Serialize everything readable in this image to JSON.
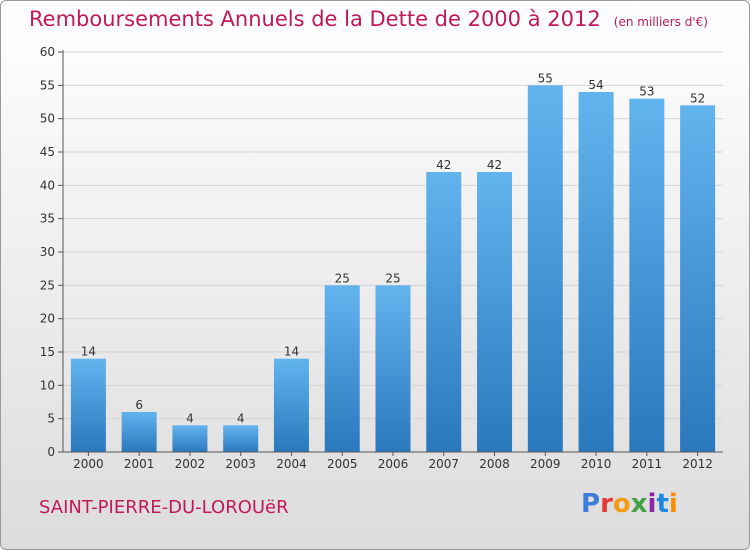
{
  "header": {
    "title": "Remboursements Annuels de la Dette de 2000 à 2012",
    "unit": "(en milliers d'€)"
  },
  "footer": {
    "commune": "SAINT-PIERRE-DU-LOROUëR",
    "logo": "Proxiti"
  },
  "colors": {
    "accent": "#c2185b",
    "bar_top": "#62b4ee",
    "bar_bottom": "#2a78bd"
  },
  "chart_data": {
    "type": "bar",
    "categories": [
      "2000",
      "2001",
      "2002",
      "2003",
      "2004",
      "2005",
      "2006",
      "2007",
      "2008",
      "2009",
      "2010",
      "2011",
      "2012"
    ],
    "values": [
      14,
      6,
      4,
      4,
      14,
      25,
      25,
      42,
      42,
      55,
      54,
      53,
      52
    ],
    "title": "Remboursements Annuels de la Dette de 2000 à 2012",
    "subtitle": "(en milliers d'€)",
    "ylim": [
      0,
      60
    ],
    "yticks": [
      0,
      5,
      10,
      15,
      20,
      25,
      30,
      35,
      40,
      45,
      50,
      55,
      60
    ],
    "grid": true,
    "data_labels": true
  }
}
